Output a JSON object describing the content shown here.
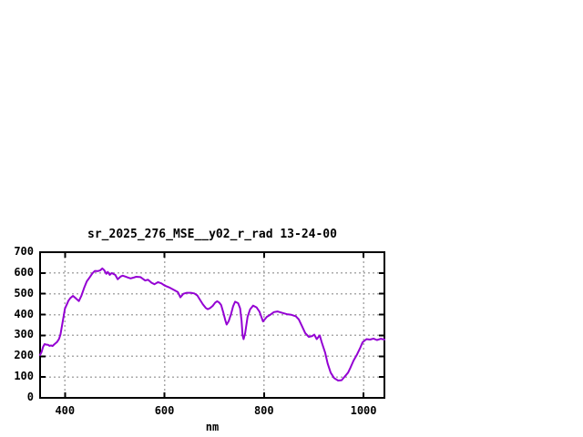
{
  "title": "sr_2025_276_MSE__y02_r_rad 13-24-00",
  "chart_data": {
    "type": "line",
    "title": "sr_2025_276_MSE__y02_r_rad 13-24-00",
    "xlabel": "nm",
    "ylabel": "",
    "xlim": [
      350,
      1042
    ],
    "ylim": [
      0,
      700
    ],
    "x_ticks": [
      400,
      600,
      800,
      1000
    ],
    "y_ticks": [
      0,
      100,
      200,
      300,
      400,
      500,
      600,
      700
    ],
    "grid": true,
    "legend": "none",
    "line_color": "#9400d3",
    "grid_color": "#aaaaaa",
    "axis_color": "#000000",
    "background": "#ffffff",
    "series": [
      {
        "x": [
          350,
          353,
          356,
          359,
          362,
          366,
          369,
          372,
          375,
          378,
          381,
          384,
          388,
          391,
          394,
          397,
          400,
          404,
          407,
          411,
          416,
          422,
          428,
          433,
          439,
          444,
          450,
          455,
          460,
          466,
          471,
          475,
          479,
          483,
          486,
          490,
          494,
          497,
          501,
          506,
          512,
          516,
          521,
          527,
          532,
          538,
          543,
          552,
          561,
          567,
          574,
          580,
          587,
          594,
          600,
          611,
          620,
          627,
          632,
          638,
          645,
          653,
          660,
          666,
          671,
          677,
          683,
          687,
          692,
          697,
          702,
          706,
          710,
          714,
          718,
          722,
          725,
          729,
          734,
          738,
          742,
          748,
          752,
          755,
          757,
          759,
          762,
          767,
          772,
          778,
          785,
          791,
          798,
          806,
          813,
          820,
          827,
          837,
          846,
          855,
          864,
          870,
          877,
          883,
          890,
          897,
          901,
          906,
          912,
          916,
          923,
          928,
          934,
          941,
          949,
          956,
          961,
          969,
          974,
          980,
          987,
          993,
          998,
          1006,
          1013,
          1020,
          1027,
          1035,
          1042
        ],
        "y": [
          206,
          220,
          245,
          258,
          256,
          255,
          250,
          252,
          249,
          256,
          262,
          268,
          283,
          305,
          345,
          388,
          429,
          450,
          467,
          480,
          490,
          478,
          465,
          490,
          531,
          560,
          580,
          598,
          610,
          609,
          613,
          622,
          613,
          596,
          605,
          591,
          600,
          596,
          591,
          570,
          583,
          587,
          583,
          578,
          574,
          578,
          582,
          580,
          564,
          568,
          553,
          546,
          556,
          550,
          540,
          529,
          517,
          508,
          483,
          500,
          505,
          505,
          502,
          492,
          473,
          450,
          432,
          426,
          432,
          442,
          458,
          464,
          458,
          446,
          412,
          375,
          352,
          368,
          405,
          440,
          462,
          455,
          430,
          370,
          300,
          282,
          310,
          390,
          425,
          443,
          435,
          414,
          367,
          390,
          400,
          412,
          415,
          408,
          402,
          399,
          392,
          377,
          341,
          311,
          293,
          297,
          304,
          282,
          300,
          267,
          216,
          165,
          121,
          95,
          83,
          85,
          99,
          121,
          147,
          179,
          209,
          238,
          267,
          282,
          280,
          285,
          278,
          284,
          280
        ]
      }
    ]
  }
}
